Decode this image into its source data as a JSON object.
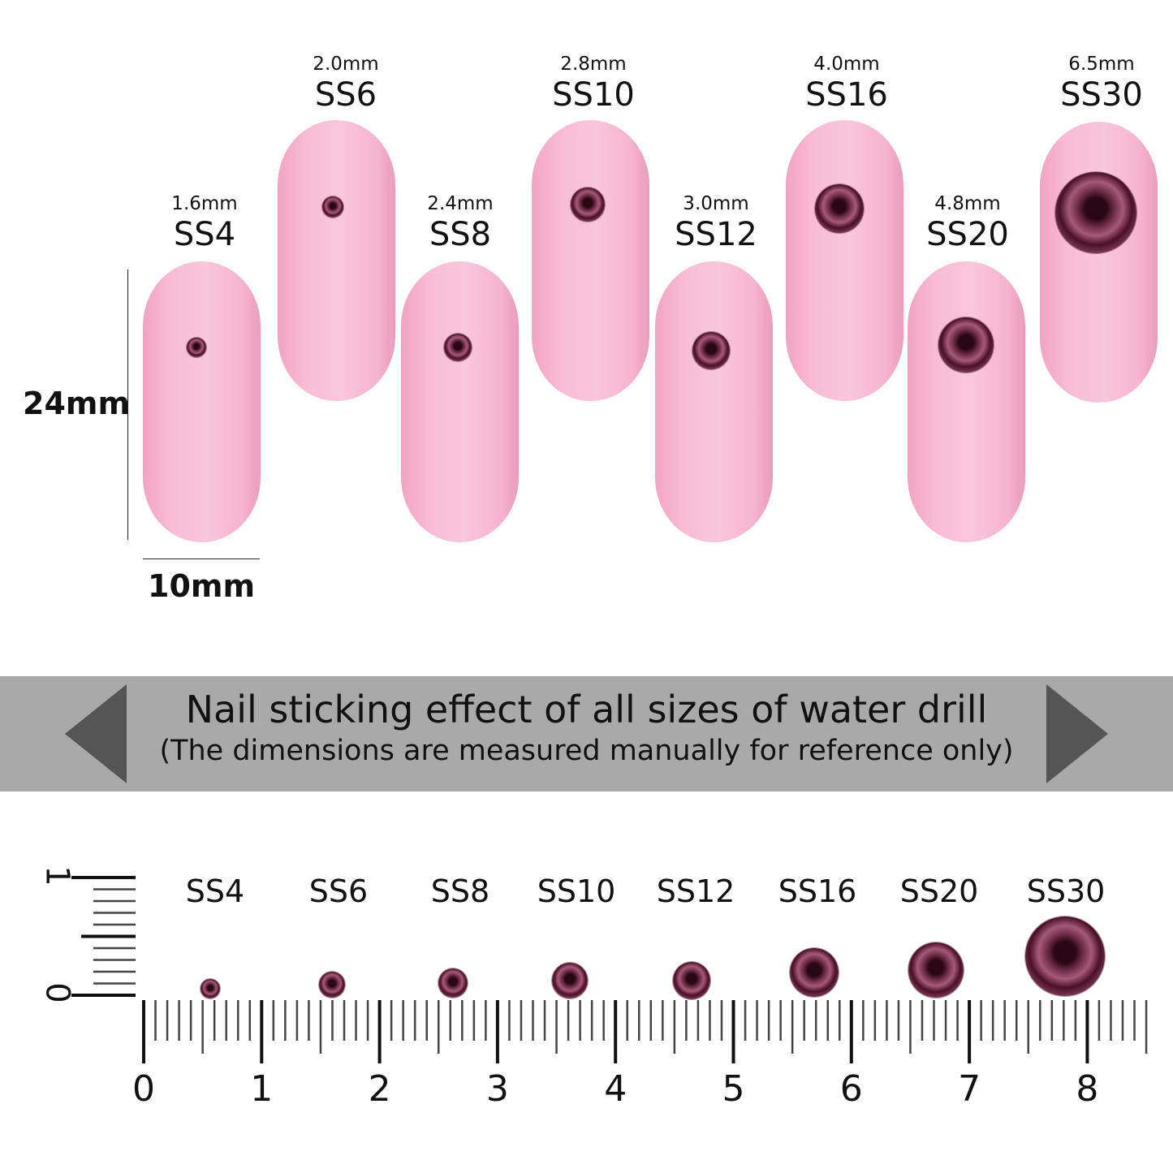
{
  "scale": {
    "height_label": "24mm",
    "width_label": "10mm"
  },
  "nails": [
    {
      "code": "SS4",
      "size": "1.6mm"
    },
    {
      "code": "SS6",
      "size": "2.0mm"
    },
    {
      "code": "SS8",
      "size": "2.4mm"
    },
    {
      "code": "SS10",
      "size": "2.8mm"
    },
    {
      "code": "SS12",
      "size": "3.0mm"
    },
    {
      "code": "SS16",
      "size": "4.0mm"
    },
    {
      "code": "SS20",
      "size": "4.8mm"
    },
    {
      "code": "SS30",
      "size": "6.5mm"
    }
  ],
  "banner": {
    "title": "Nail sticking effect of all sizes of water drill",
    "subtitle": "(The dimensions are measured manually for reference only)",
    "color": "#a9a9a9"
  },
  "ruler": {
    "labels": [
      "SS4",
      "SS6",
      "SS8",
      "SS10",
      "SS12",
      "SS16",
      "SS20",
      "SS30"
    ],
    "numbers": [
      "0",
      "1",
      "2",
      "3",
      "4",
      "5",
      "6",
      "7",
      "8"
    ],
    "vertical_numbers": [
      "0",
      "1"
    ]
  },
  "colors": {
    "nail": "#f8bdd6",
    "gem": "#5a1a35"
  }
}
